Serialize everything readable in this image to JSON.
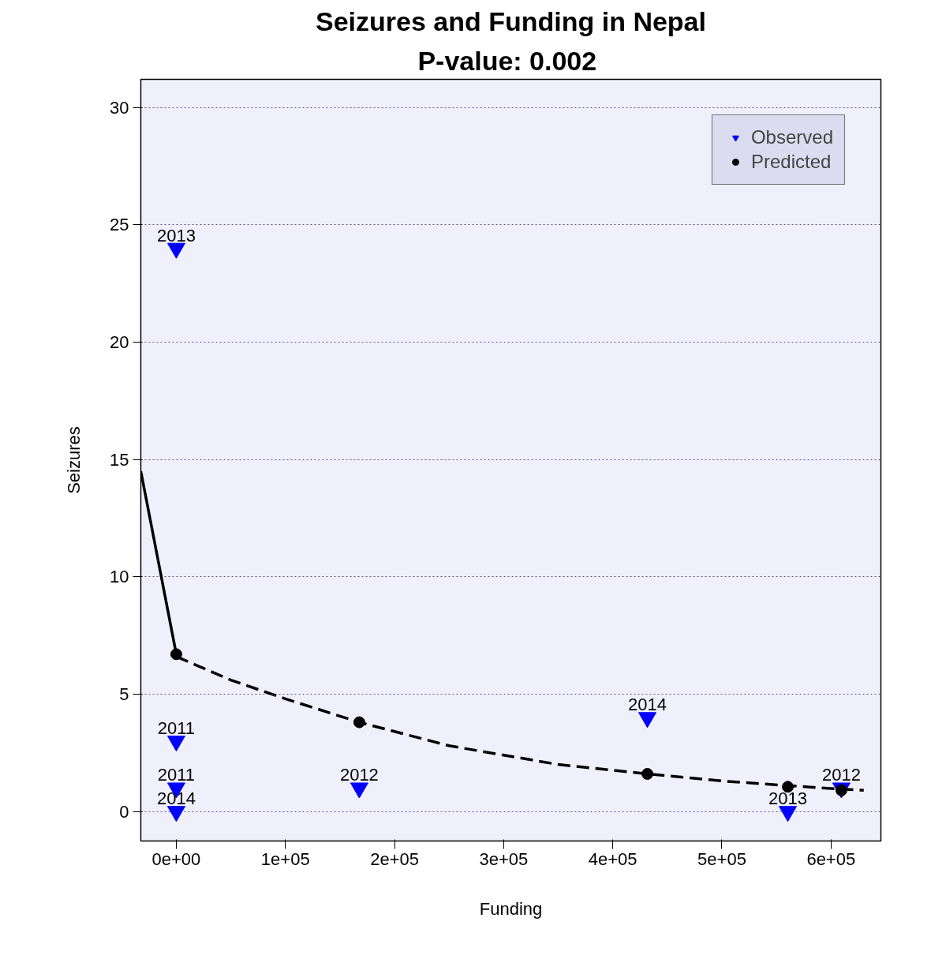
{
  "chart_data": {
    "type": "scatter",
    "title": "Seizures and Funding in Nepal",
    "subtitle": "P-value:  0.002",
    "xlabel": "Funding",
    "ylabel": "Seizures",
    "xlim": [
      -32500,
      645700
    ],
    "ylim": [
      -1.26,
      31.2
    ],
    "xticks": [
      {
        "value": 0,
        "label": "0e+00"
      },
      {
        "value": 100000,
        "label": "1e+05"
      },
      {
        "value": 200000,
        "label": "2e+05"
      },
      {
        "value": 300000,
        "label": "3e+05"
      },
      {
        "value": 400000,
        "label": "4e+05"
      },
      {
        "value": 500000,
        "label": "5e+05"
      },
      {
        "value": 600000,
        "label": "6e+05"
      }
    ],
    "yticks": [
      0,
      5,
      10,
      15,
      20,
      25,
      30
    ],
    "grid": "y",
    "legend": "top right",
    "series": [
      {
        "name": "Observed",
        "marker": "triangle",
        "color": "#0000ff",
        "x": [
          0,
          0,
          0,
          0,
          167700,
          431700,
          560400,
          609500
        ],
        "values": [
          24,
          3,
          1,
          0,
          1,
          4,
          0,
          1
        ]
      },
      {
        "name": "Predicted",
        "marker": "circle",
        "color": "#000000",
        "x": [
          0,
          167700,
          431700,
          560400,
          609500
        ],
        "values": [
          6.7,
          3.8,
          1.6,
          1.05,
          0.9
        ]
      },
      {
        "type": "line",
        "line_style": "solid",
        "color": "#000000",
        "x": [
          -32500,
          0
        ],
        "values": [
          14.5,
          6.7
        ]
      },
      {
        "type": "line",
        "line_style": "dashed",
        "color": "#000000",
        "x": [
          0,
          50000,
          100000,
          167700,
          250000,
          300000,
          350000,
          431700,
          500000,
          560400,
          609500,
          630000
        ],
        "values": [
          6.6,
          5.6,
          4.8,
          3.8,
          2.8,
          2.4,
          2.0,
          1.6,
          1.3,
          1.1,
          0.95,
          0.9
        ]
      }
    ],
    "annotations": [
      {
        "text": "2013",
        "x": 0,
        "y": 24
      },
      {
        "text": "2011",
        "x": 0,
        "y": 3
      },
      {
        "text": "2011",
        "x": 0,
        "y": 1
      },
      {
        "text": "2014",
        "x": 0,
        "y": 0
      },
      {
        "text": "2012",
        "x": 167700,
        "y": 1
      },
      {
        "text": "2014",
        "x": 431700,
        "y": 4
      },
      {
        "text": "2013",
        "x": 560400,
        "y": 0
      },
      {
        "text": "2012",
        "x": 609500,
        "y": 1
      }
    ]
  }
}
